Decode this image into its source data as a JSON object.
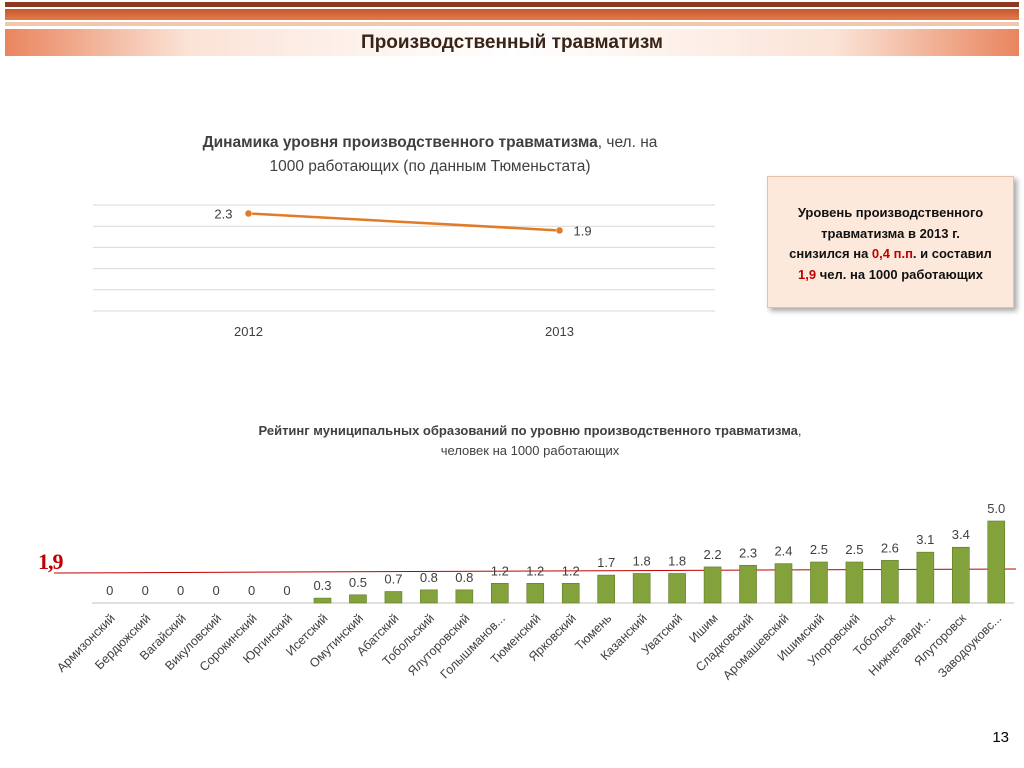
{
  "header": {
    "title": "Производственный травматизм"
  },
  "line_chart_title": {
    "bold": "Динамика уровня  производственного травматизма",
    "rest": ", чел. на",
    "line2": "1000 работающих (по данным Тюменьстата)"
  },
  "callout": {
    "line1": "Уровень производственного",
    "line2": "травматизма в 2013 г.",
    "line3_pre": "снизился на ",
    "line3_red": "0,4 п.п",
    "line3_post": ". и составил",
    "line4_red": "1,9",
    "line4_post": " чел. на 1000 работающих"
  },
  "bar_chart_title": {
    "bold": "Рейтинг муниципальных образований по уровню производственного травматизма",
    "rest": ",",
    "line2": "человек на 1000 работающих"
  },
  "average_label": "1,9",
  "page_number": "13",
  "colors": {
    "line": "#e07b28",
    "bar": "#84a23c",
    "avg_line": "#c00000",
    "accent": "#c00000"
  },
  "chart_data": [
    {
      "type": "line",
      "categories": [
        "2012",
        "2013"
      ],
      "series": [
        {
          "values": [
            2.3,
            1.9
          ],
          "labels": [
            "2.3",
            "1.9"
          ]
        }
      ],
      "ylim": [
        0,
        2.5
      ],
      "grid": true
    },
    {
      "type": "bar",
      "categories": [
        "Армизонский",
        "Бердюжский",
        "Вагайский",
        "Викуловский",
        "Сорокинский",
        "Юргинский",
        "Исетский",
        "Омутинский",
        "Абатский",
        "Тобольский",
        "Ялуторовский",
        "Голышманов...",
        "Тюменский",
        "Ярковский",
        "Тюмень",
        "Казанский",
        "Уватский",
        "Ишим",
        "Сладковский",
        "Аромашевский",
        "Ишимский",
        "Упоровский",
        "Тобольск",
        "Нижнетавди...",
        "Ялуторовск",
        "Заводоуковс..."
      ],
      "values": [
        0,
        0,
        0,
        0,
        0,
        0,
        0.3,
        0.5,
        0.7,
        0.8,
        0.8,
        1.2,
        1.2,
        1.2,
        1.7,
        1.8,
        1.8,
        2.2,
        2.3,
        2.4,
        2.5,
        2.5,
        2.6,
        3.1,
        3.4,
        5.0
      ],
      "value_labels": [
        "0",
        "0",
        "0",
        "0",
        "0",
        "0",
        "0.3",
        "0.5",
        "0.7",
        "0.8",
        "0.8",
        "1.2",
        "1.2",
        "1.2",
        "1.7",
        "1.8",
        "1.8",
        "2.2",
        "2.3",
        "2.4",
        "2.5",
        "2.5",
        "2.6",
        "3.1",
        "3.4",
        "5.0"
      ],
      "reference_line": 1.9,
      "ylim": [
        0,
        5.0
      ]
    }
  ]
}
